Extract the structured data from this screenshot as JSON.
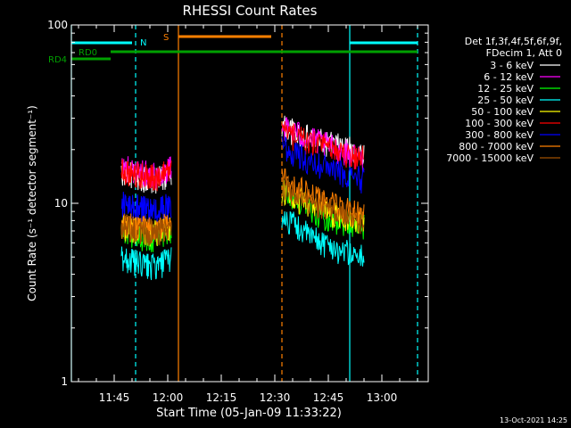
{
  "chart_data": {
    "type": "line",
    "title": "RHESSI Count Rates",
    "xlabel": "Start Time (05-Jan-09 11:33:22)",
    "ylabel": "Count Rate (s⁻¹ detector segment⁻¹)",
    "y_scale": "log",
    "ylim": [
      1,
      100
    ],
    "xlim": [
      "11:33",
      "13:13"
    ],
    "x_ticks": [
      "11:45",
      "12:00",
      "12:15",
      "12:30",
      "12:45",
      "13:00"
    ],
    "y_ticks": [
      "1",
      "10",
      "100"
    ],
    "timestamp": "13-Oct-2021 14:25",
    "legend": {
      "position": "top-right",
      "header": [
        "Det 1f,3f,4f,5f,6f,9f,",
        "FDecim 1, Att 0"
      ]
    },
    "series": [
      {
        "name": "3 - 6 keV",
        "color": "#ffffff",
        "x": [
          "11:47",
          "11:52",
          "11:57",
          "12:01",
          "12:32",
          "12:40",
          "12:48",
          "12:55"
        ],
        "y": [
          15,
          14,
          13.5,
          15,
          27,
          23,
          21,
          19
        ]
      },
      {
        "name": "6 - 12 keV",
        "color": "#ff00ff",
        "x": [
          "11:47",
          "11:52",
          "11:57",
          "12:01",
          "12:32",
          "12:40",
          "12:48",
          "12:55"
        ],
        "y": [
          16,
          15,
          14.5,
          16,
          27,
          23,
          20,
          18
        ]
      },
      {
        "name": "12 - 25 keV",
        "color": "#00ff00",
        "x": [
          "11:47",
          "11:52",
          "11:57",
          "12:01",
          "12:32",
          "12:40",
          "12:48",
          "12:55"
        ],
        "y": [
          7,
          6.5,
          6.3,
          7,
          12,
          9,
          8,
          7.5
        ]
      },
      {
        "name": "25 - 50 keV",
        "color": "#00ffff",
        "x": [
          "11:47",
          "11:52",
          "11:57",
          "12:01",
          "12:32",
          "12:40",
          "12:48",
          "12:55"
        ],
        "y": [
          5,
          4.6,
          4.4,
          5,
          8.5,
          6.5,
          5.5,
          5
        ]
      },
      {
        "name": "50 - 100 keV",
        "color": "#ffff00",
        "x": [
          "11:47",
          "11:52",
          "11:57",
          "12:01",
          "12:32",
          "12:40",
          "12:48",
          "12:55"
        ],
        "y": [
          7.5,
          7,
          6.8,
          7.5,
          12,
          9.5,
          8.5,
          8
        ]
      },
      {
        "name": "100 - 300 keV",
        "color": "#ff0000",
        "x": [
          "11:47",
          "11:52",
          "11:57",
          "12:01",
          "12:32",
          "12:40",
          "12:48",
          "12:55"
        ],
        "y": [
          15.5,
          14.5,
          14,
          15.5,
          25,
          22,
          19.5,
          18
        ]
      },
      {
        "name": "300 - 800 keV",
        "color": "#0000ff",
        "x": [
          "11:47",
          "11:52",
          "11:57",
          "12:01",
          "12:32",
          "12:40",
          "12:48",
          "12:55"
        ],
        "y": [
          10,
          9.5,
          9,
          10,
          21,
          17,
          15,
          13.5
        ]
      },
      {
        "name": "800 - 7000 keV",
        "color": "#ff8000",
        "x": [
          "11:47",
          "11:52",
          "11:57",
          "12:01",
          "12:32",
          "12:40",
          "12:48",
          "12:55"
        ],
        "y": [
          8,
          7.3,
          7,
          8,
          14,
          11,
          9.5,
          8.5
        ]
      },
      {
        "name": "7000 - 15000 keV",
        "color": "#a05000",
        "x": [
          "11:47",
          "11:52",
          "11:57",
          "12:01",
          "12:32",
          "12:40",
          "12:48",
          "12:55"
        ],
        "y": [
          7.5,
          7,
          6.8,
          7.5,
          12.5,
          10,
          9,
          8
        ]
      }
    ],
    "flags": [
      {
        "name": "RD4",
        "color": "#00a000"
      },
      {
        "name": "RD0",
        "color": "#00a000"
      },
      {
        "name": "N",
        "color": "#00ffff"
      },
      {
        "name": "S",
        "color": "#ff8000"
      }
    ],
    "vertical_markers": [
      {
        "time": "11:33",
        "color": "#00ffff",
        "style": "solid"
      },
      {
        "time": "11:51",
        "color": "#00ffff",
        "style": "dashed"
      },
      {
        "time": "12:03",
        "color": "#ff8000",
        "style": "solid"
      },
      {
        "time": "12:32",
        "color": "#ff8000",
        "style": "dashed"
      },
      {
        "time": "12:51",
        "color": "#00ffff",
        "style": "solid"
      },
      {
        "time": "13:10",
        "color": "#00ffff",
        "style": "dashed"
      }
    ]
  }
}
